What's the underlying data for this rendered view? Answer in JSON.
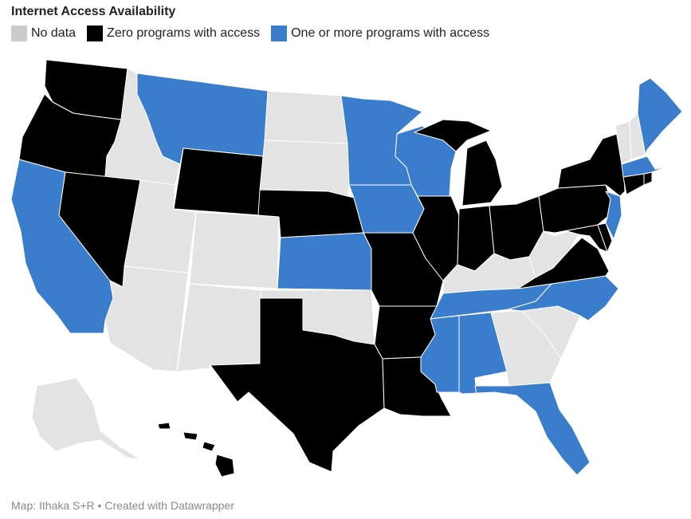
{
  "title": "Internet Access Availability",
  "legend": [
    {
      "label": "No data",
      "color": "#cccccc"
    },
    {
      "label": "Zero programs with access",
      "color": "#000000"
    },
    {
      "label": "One or more programs with access",
      "color": "#3a7dcc"
    }
  ],
  "footer": "Map: Ithaka S+R • Created with Datawrapper",
  "map_colors": {
    "no_data": "#e3e3e3",
    "zero": "#000000",
    "one_or_more": "#3a7dcc"
  },
  "states": {
    "WA": "zero",
    "OR": "zero",
    "CA": "one_or_more",
    "ID": "no_data",
    "NV": "zero",
    "MT": "one_or_more",
    "WY": "zero",
    "UT": "no_data",
    "AZ": "no_data",
    "CO": "no_data",
    "NM": "no_data",
    "ND": "no_data",
    "SD": "no_data",
    "NE": "zero",
    "KS": "one_or_more",
    "OK": "no_data",
    "TX": "zero",
    "MN": "one_or_more",
    "IA": "one_or_more",
    "MO": "zero",
    "AR": "zero",
    "LA": "zero",
    "WI": "one_or_more",
    "IL": "zero",
    "MI": "zero",
    "IN": "zero",
    "OH": "zero",
    "KY": "no_data",
    "TN": "one_or_more",
    "MS": "one_or_more",
    "AL": "one_or_more",
    "GA": "no_data",
    "FL": "one_or_more",
    "SC": "no_data",
    "NC": "one_or_more",
    "VA": "zero",
    "WV": "no_data",
    "MD": "zero",
    "DE": "zero",
    "PA": "zero",
    "NJ": "one_or_more",
    "NY": "zero",
    "CT": "zero",
    "RI": "zero",
    "MA": "one_or_more",
    "VT": "no_data",
    "NH": "no_data",
    "ME": "one_or_more",
    "AK": "no_data",
    "HI": "zero"
  }
}
